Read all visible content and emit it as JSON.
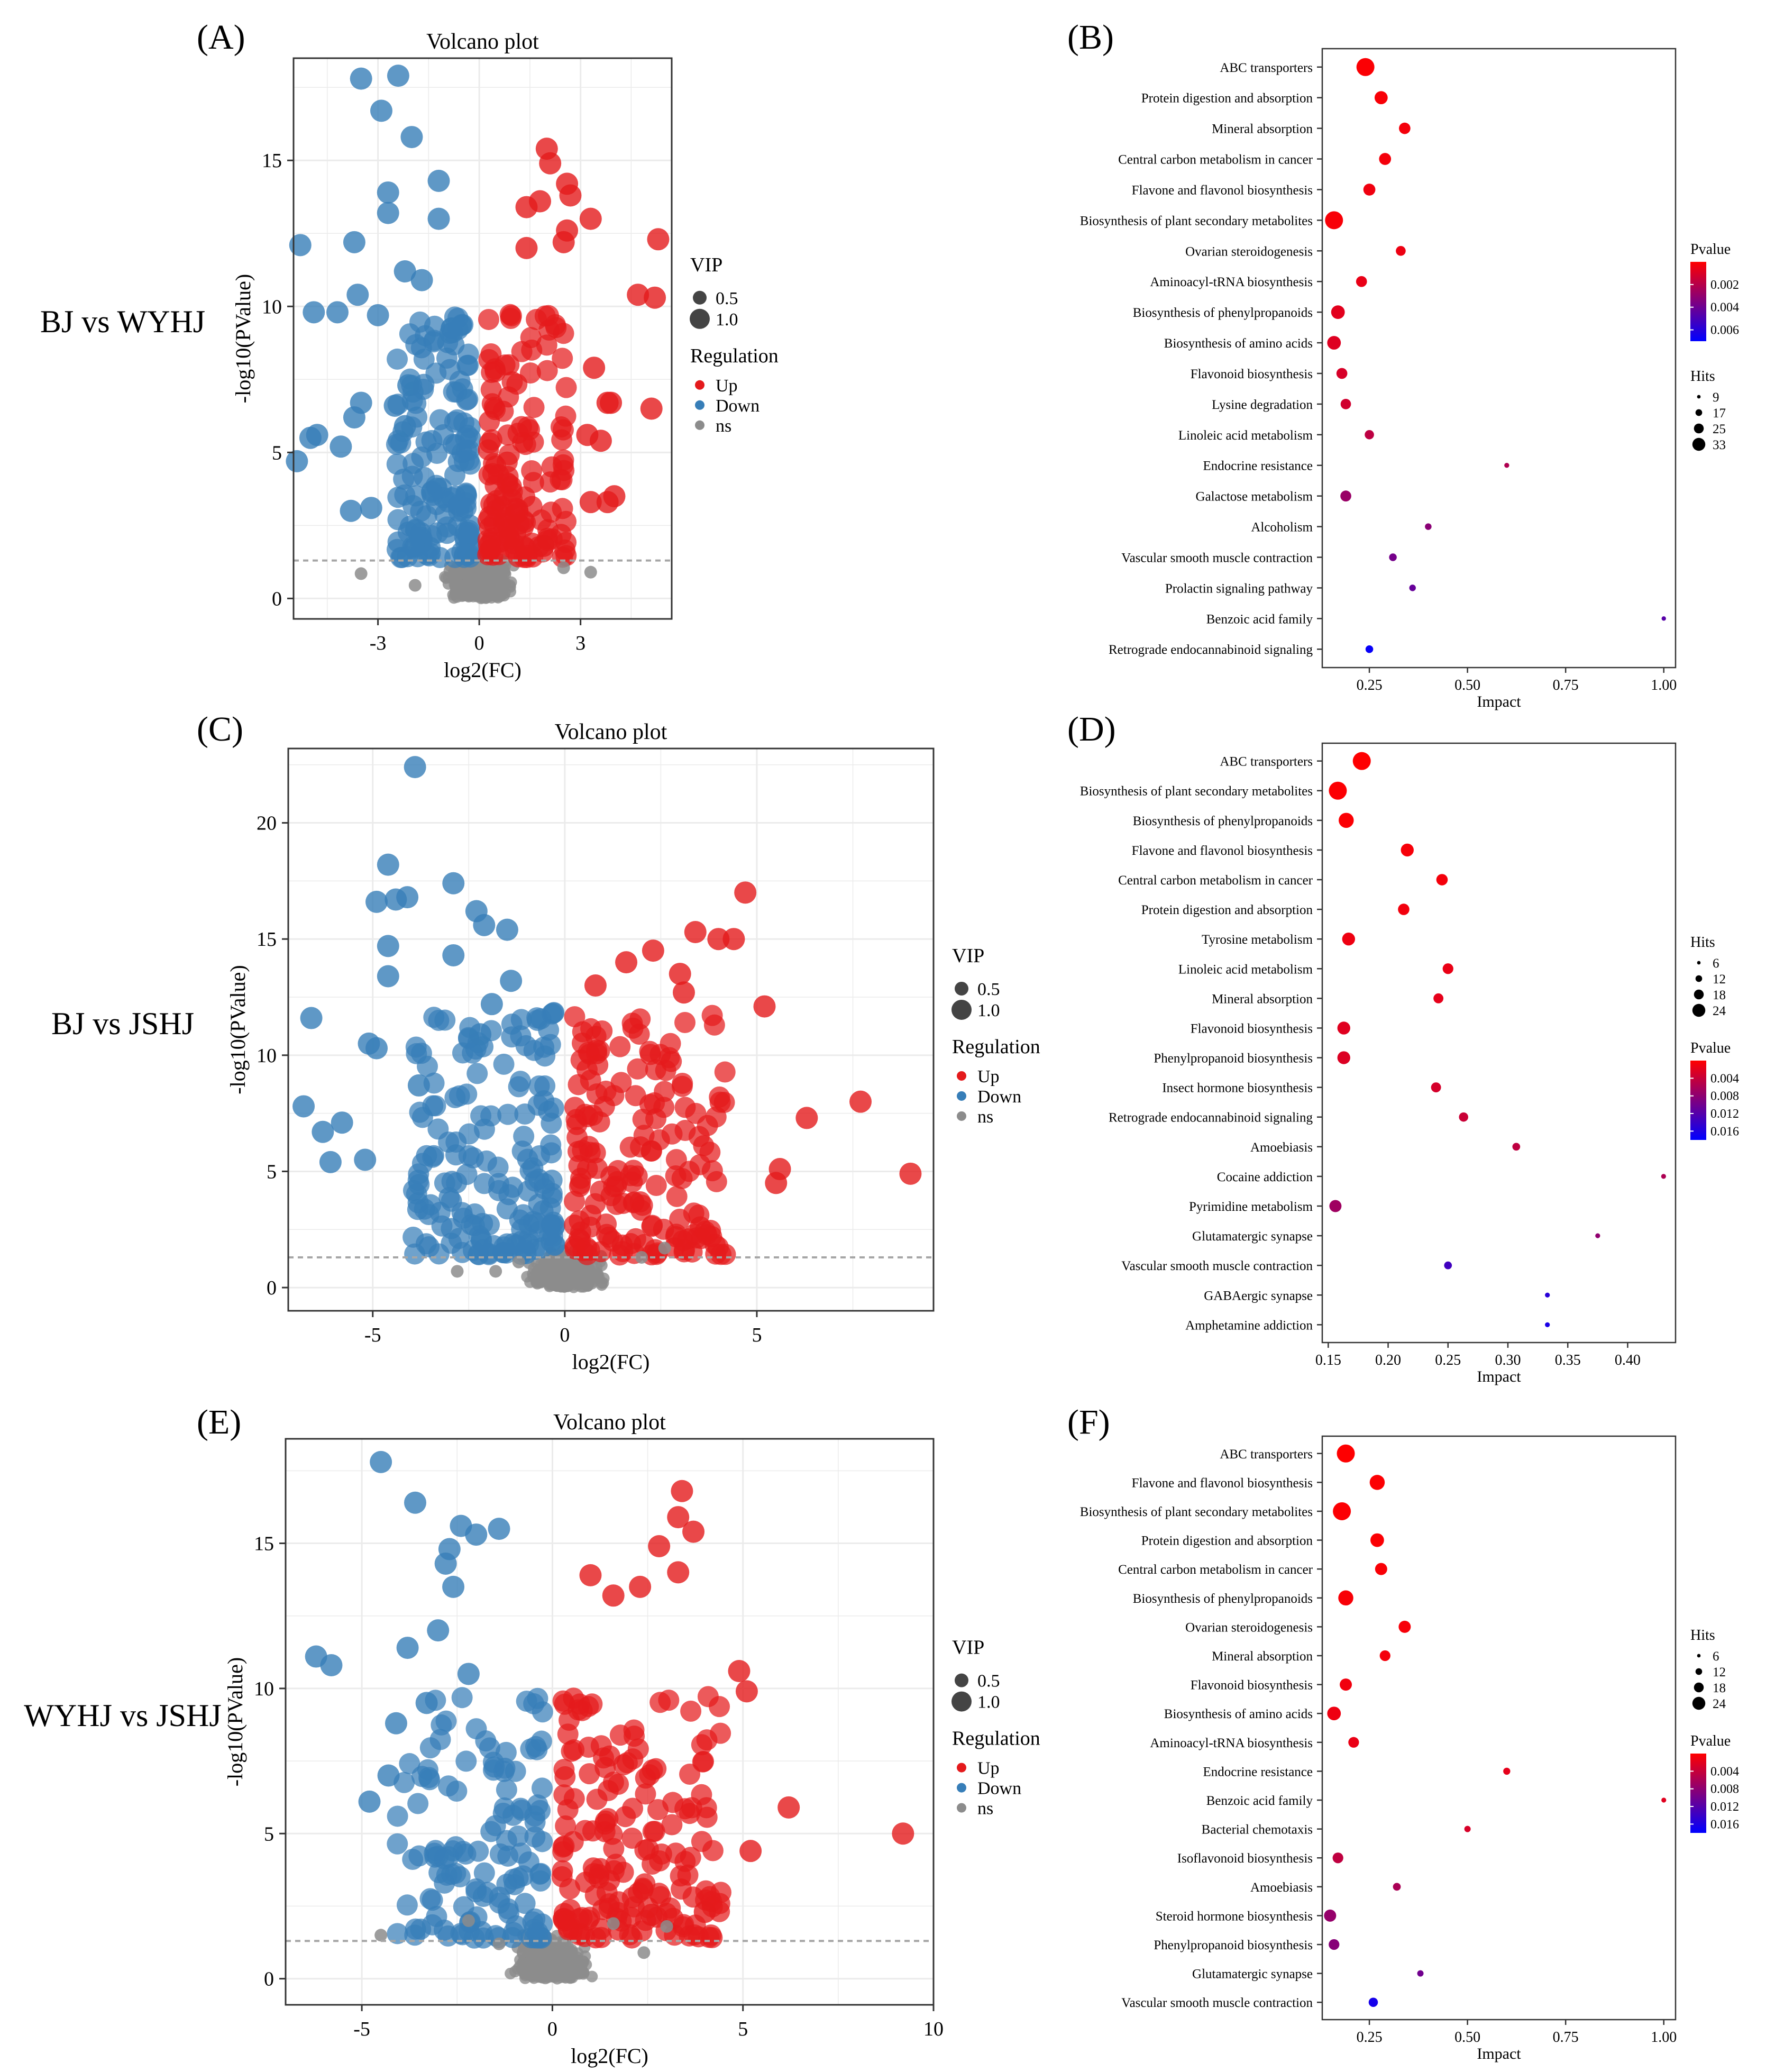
{
  "figure": {
    "rows": [
      {
        "comparison_label": "BJ vs WYHJ",
        "volcano_letter": "(A)",
        "pathway_letter": "(B)"
      },
      {
        "comparison_label": "BJ vs JSHJ",
        "volcano_letter": "(C)",
        "pathway_letter": "(D)"
      },
      {
        "comparison_label": "WYHJ vs JSHJ",
        "volcano_letter": "(E)",
        "pathway_letter": "(F)"
      }
    ],
    "colors": {
      "up": "#e41a1c",
      "down": "#377eb8",
      "ns": "#8c8c8c",
      "grid": "#ebebeb",
      "threshold": "#a6a6a6",
      "pvalue_low": "#ff0000",
      "pvalue_high": "#0000ff"
    }
  },
  "chart_data": [
    {
      "id": "A",
      "type": "scatter",
      "kind": "volcano",
      "title": "Volcano plot",
      "xlabel": "log2(FC)",
      "ylabel": "-log10(PValue)",
      "xlim": [
        -5.5,
        5.7
      ],
      "ylim": [
        -0.7,
        18.5
      ],
      "xticks": [
        -3,
        0,
        3
      ],
      "yticks": [
        0,
        5,
        10,
        15
      ],
      "threshold_y": 1.3,
      "grid": true,
      "seed": 11,
      "legend": {
        "vip_title": "VIP",
        "vip_labels": [
          "0.5",
          "1.0"
        ],
        "reg_title": "Regulation",
        "reg_labels": [
          "Up",
          "Down",
          "ns"
        ],
        "position": "right"
      },
      "points_down": [
        [
          -3.5,
          17.8
        ],
        [
          -2.4,
          17.9
        ],
        [
          -2.9,
          16.7
        ],
        [
          -2.0,
          15.8
        ],
        [
          -1.2,
          14.3
        ],
        [
          -2.7,
          13.9
        ],
        [
          -2.7,
          13.2
        ],
        [
          -1.2,
          13.0
        ],
        [
          -5.3,
          12.1
        ],
        [
          -3.7,
          12.2
        ],
        [
          -4.9,
          9.8
        ],
        [
          -4.2,
          9.8
        ],
        [
          -3.0,
          9.7
        ],
        [
          -3.6,
          10.4
        ],
        [
          -2.2,
          11.2
        ],
        [
          -5.0,
          5.5
        ],
        [
          -4.8,
          5.6
        ],
        [
          -4.1,
          5.2
        ],
        [
          -3.5,
          6.7
        ],
        [
          -5.4,
          4.7
        ],
        [
          -3.8,
          3.0
        ],
        [
          -3.2,
          3.1
        ],
        [
          -3.7,
          6.2
        ],
        [
          -2.1,
          7.3
        ],
        [
          -2.2,
          5.9
        ],
        [
          -1.7,
          10.9
        ],
        [
          -2.5,
          6.6
        ]
      ],
      "points_up": [
        [
          2.0,
          15.4
        ],
        [
          2.1,
          14.9
        ],
        [
          2.6,
          14.2
        ],
        [
          2.7,
          13.8
        ],
        [
          1.8,
          13.6
        ],
        [
          1.4,
          13.4
        ],
        [
          3.3,
          13.0
        ],
        [
          2.6,
          12.6
        ],
        [
          2.5,
          12.2
        ],
        [
          1.4,
          12.0
        ],
        [
          5.3,
          12.3
        ],
        [
          4.7,
          10.4
        ],
        [
          5.2,
          10.3
        ],
        [
          5.1,
          6.5
        ],
        [
          3.4,
          7.9
        ],
        [
          3.8,
          6.7
        ],
        [
          3.9,
          6.7
        ],
        [
          3.2,
          5.6
        ],
        [
          3.6,
          5.4
        ],
        [
          3.8,
          3.3
        ],
        [
          4.0,
          3.5
        ],
        [
          3.3,
          3.3
        ],
        [
          1.9,
          1.8
        ]
      ],
      "points_ns": [
        [
          -3.5,
          0.85
        ],
        [
          -1.9,
          0.45
        ],
        [
          3.3,
          0.9
        ],
        [
          2.5,
          1.05
        ]
      ],
      "n_down_cloud": 150,
      "n_up_cloud": 140,
      "n_ns": 420
    },
    {
      "id": "B",
      "type": "scatter",
      "kind": "pathway",
      "xlabel": "Impact",
      "xlim": [
        0.13,
        1.03
      ],
      "xticks": [
        0.25,
        0.5,
        0.75,
        1.0
      ],
      "xtick_labels": [
        "0.25",
        "0.50",
        "0.75",
        "1.00"
      ],
      "pathways": [
        "ABC transporters",
        "Protein digestion and absorption",
        "Mineral absorption",
        "Central carbon metabolism in cancer",
        "Flavone and flavonol biosynthesis",
        "Biosynthesis of plant secondary metabolites",
        "Ovarian steroidogenesis",
        "Aminoacyl-tRNA biosynthesis",
        "Biosynthesis of phenylpropanoids",
        "Biosynthesis of amino acids",
        "Flavonoid biosynthesis",
        "Lysine degradation",
        "Linoleic acid metabolism",
        "Endocrine resistance",
        "Galactose metabolism",
        "Alcoholism",
        "Vascular smooth muscle contraction",
        "Prolactin signaling pathway",
        "Benzoic acid family",
        "Retrograde endocannabinoid signaling"
      ],
      "impact": [
        0.24,
        0.28,
        0.34,
        0.29,
        0.25,
        0.16,
        0.33,
        0.23,
        0.17,
        0.16,
        0.18,
        0.19,
        0.25,
        0.6,
        0.19,
        0.4,
        0.31,
        0.36,
        1.0,
        0.25
      ],
      "hits": [
        33,
        24,
        21,
        22,
        22,
        33,
        18,
        20,
        25,
        25,
        20,
        19,
        17,
        9,
        20,
        12,
        14,
        12,
        8,
        14
      ],
      "pvalue": [
        0.0001,
        0.0002,
        0.0003,
        0.0003,
        0.0004,
        0.0002,
        0.0005,
        0.0006,
        0.0008,
        0.0009,
        0.0011,
        0.0013,
        0.0018,
        0.0022,
        0.0028,
        0.0032,
        0.0038,
        0.0042,
        0.0046,
        0.0068
      ],
      "hits_legend": {
        "title": "Hits",
        "values": [
          9,
          17,
          25,
          33
        ]
      },
      "pvalue_legend": {
        "title": "Pvalue",
        "range": [
          0,
          0.007
        ],
        "ticks": [
          0.002,
          0.004,
          0.006
        ],
        "tick_labels": [
          "0.002",
          "0.004",
          "0.006"
        ]
      }
    },
    {
      "id": "C",
      "type": "scatter",
      "kind": "volcano",
      "title": "Volcano plot",
      "xlabel": "log2(FC)",
      "ylabel": "-log10(PValue)",
      "xlim": [
        -7.2,
        9.6
      ],
      "ylim": [
        -1.0,
        23.2
      ],
      "xticks": [
        -5,
        0,
        5
      ],
      "yticks": [
        0,
        5,
        10,
        15,
        20
      ],
      "threshold_y": 1.3,
      "grid": true,
      "seed": 23,
      "legend": {
        "vip_title": "VIP",
        "vip_labels": [
          "0.5",
          "1.0"
        ],
        "reg_title": "Regulation",
        "reg_labels": [
          "Up",
          "Down",
          "ns"
        ],
        "position": "right"
      },
      "points_down": [
        [
          -3.9,
          22.4
        ],
        [
          -4.6,
          18.2
        ],
        [
          -4.1,
          16.8
        ],
        [
          -4.4,
          16.7
        ],
        [
          -4.9,
          16.6
        ],
        [
          -2.9,
          17.4
        ],
        [
          -2.3,
          16.2
        ],
        [
          -2.1,
          15.6
        ],
        [
          -1.5,
          15.4
        ],
        [
          -4.6,
          14.7
        ],
        [
          -6.6,
          11.6
        ],
        [
          -4.6,
          13.4
        ],
        [
          -2.9,
          14.3
        ],
        [
          -1.4,
          13.2
        ],
        [
          -5.1,
          10.5
        ],
        [
          -4.9,
          10.3
        ],
        [
          -6.8,
          7.8
        ],
        [
          -5.8,
          7.1
        ],
        [
          -6.3,
          6.7
        ],
        [
          -6.1,
          5.4
        ],
        [
          -5.2,
          5.5
        ],
        [
          -3.8,
          8.7
        ],
        [
          -2.2,
          10.9
        ],
        [
          -1.9,
          12.2
        ]
      ],
      "points_up": [
        [
          4.7,
          17.0
        ],
        [
          4.4,
          15.0
        ],
        [
          2.3,
          14.5
        ],
        [
          3.4,
          15.3
        ],
        [
          4.0,
          15.0
        ],
        [
          3.0,
          13.5
        ],
        [
          5.2,
          12.1
        ],
        [
          7.7,
          8.0
        ],
        [
          6.3,
          7.3
        ],
        [
          9.0,
          4.9
        ],
        [
          5.6,
          5.1
        ],
        [
          5.5,
          4.5
        ],
        [
          0.8,
          13.0
        ],
        [
          3.1,
          12.7
        ],
        [
          1.6,
          14.0
        ]
      ],
      "points_ns": [
        [
          -2.8,
          0.7
        ],
        [
          -1.8,
          0.7
        ],
        [
          2.0,
          1.3
        ],
        [
          2.6,
          1.7
        ],
        [
          -1.2,
          1.1
        ]
      ],
      "n_down_cloud": 170,
      "n_up_cloud": 170,
      "n_ns": 440
    },
    {
      "id": "D",
      "type": "scatter",
      "kind": "pathway",
      "xlabel": "Impact",
      "xlim": [
        0.145,
        0.44
      ],
      "xticks": [
        0.15,
        0.2,
        0.25,
        0.3,
        0.35,
        0.4
      ],
      "xtick_labels": [
        "0.15",
        "0.20",
        "0.25",
        "0.30",
        "0.35",
        "0.40"
      ],
      "pathways": [
        "ABC transporters",
        "Biosynthesis of plant secondary metabolites",
        "Biosynthesis of phenylpropanoids",
        "Flavone and flavonol biosynthesis",
        "Central carbon metabolism in cancer",
        "Protein digestion and absorption",
        "Tyrosine metabolism",
        "Linoleic acid metabolism",
        "Mineral absorption",
        "Flavonoid biosynthesis",
        "Phenylpropanoid biosynthesis",
        "Insect hormone biosynthesis",
        "Retrograde endocannabinoid signaling",
        "Amoebiasis",
        "Cocaine addiction",
        "Pyrimidine metabolism",
        "Glutamatergic synapse",
        "Vascular smooth muscle contraction",
        "GABAergic synapse",
        "Amphetamine addiction"
      ],
      "impact": [
        0.178,
        0.158,
        0.165,
        0.216,
        0.245,
        0.213,
        0.167,
        0.25,
        0.242,
        0.163,
        0.163,
        0.24,
        0.263,
        0.307,
        0.43,
        0.156,
        0.375,
        0.25,
        0.333,
        0.333
      ],
      "hits": [
        25,
        24,
        20,
        17,
        15,
        15,
        17,
        14,
        13,
        17,
        17,
        13,
        12,
        10,
        6,
        16,
        6,
        10,
        6,
        6
      ],
      "pvalue": [
        0.0001,
        0.0002,
        0.0003,
        0.0006,
        0.0008,
        0.0009,
        0.0012,
        0.0015,
        0.0018,
        0.0022,
        0.0025,
        0.003,
        0.0038,
        0.0046,
        0.0058,
        0.0068,
        0.0078,
        0.0135,
        0.0152,
        0.0162
      ],
      "hits_legend": {
        "title": "Hits",
        "values": [
          6,
          12,
          18,
          24
        ]
      },
      "pvalue_legend": {
        "title": "Pvalue",
        "range": [
          0,
          0.018
        ],
        "ticks": [
          0.004,
          0.008,
          0.012,
          0.016
        ],
        "tick_labels": [
          "0.004",
          "0.008",
          "0.012",
          "0.016"
        ]
      }
    },
    {
      "id": "E",
      "type": "scatter",
      "kind": "volcano",
      "title": "Volcano plot",
      "xlabel": "log2(FC)",
      "ylabel": "-log10(PValue)",
      "xlim": [
        -7.0,
        10.0
      ],
      "ylim": [
        -0.9,
        18.6
      ],
      "xticks": [
        -5,
        0,
        5,
        10
      ],
      "yticks": [
        0,
        5,
        10,
        15
      ],
      "threshold_y": 1.3,
      "grid": true,
      "seed": 37,
      "legend": {
        "vip_title": "VIP",
        "vip_labels": [
          "0.5",
          "1.0"
        ],
        "reg_title": "Regulation",
        "reg_labels": [
          "Up",
          "Down",
          "ns"
        ],
        "position": "right"
      },
      "points_down": [
        [
          -4.5,
          17.8
        ],
        [
          -3.6,
          16.4
        ],
        [
          -2.4,
          15.6
        ],
        [
          -2.7,
          14.8
        ],
        [
          -2.0,
          15.3
        ],
        [
          -2.8,
          14.3
        ],
        [
          -6.2,
          11.1
        ],
        [
          -5.8,
          10.8
        ],
        [
          -4.8,
          6.1
        ],
        [
          -3.8,
          11.4
        ],
        [
          -4.1,
          8.8
        ],
        [
          -3.0,
          12.0
        ],
        [
          -2.2,
          10.5
        ],
        [
          -4.3,
          7.0
        ],
        [
          -3.3,
          9.5
        ],
        [
          -1.4,
          15.5
        ],
        [
          -2.6,
          13.5
        ]
      ],
      "points_up": [
        [
          3.4,
          16.8
        ],
        [
          3.3,
          15.9
        ],
        [
          3.7,
          15.4
        ],
        [
          2.8,
          14.9
        ],
        [
          3.3,
          14.0
        ],
        [
          1.0,
          13.9
        ],
        [
          4.9,
          10.6
        ],
        [
          5.1,
          9.9
        ],
        [
          6.2,
          5.9
        ],
        [
          9.2,
          5.0
        ],
        [
          5.2,
          4.4
        ],
        [
          4.0,
          2.3
        ],
        [
          2.6,
          2.2
        ],
        [
          2.3,
          13.5
        ],
        [
          1.6,
          13.2
        ]
      ],
      "points_ns": [
        [
          -4.5,
          1.5
        ],
        [
          -2.2,
          2.0
        ],
        [
          -1.4,
          1.2
        ],
        [
          1.6,
          1.9
        ],
        [
          3.0,
          1.8
        ],
        [
          2.4,
          0.9
        ]
      ],
      "n_down_cloud": 130,
      "n_up_cloud": 170,
      "n_ns": 420
    },
    {
      "id": "F",
      "type": "scatter",
      "kind": "pathway",
      "xlabel": "Impact",
      "xlim": [
        0.13,
        1.03
      ],
      "xticks": [
        0.25,
        0.5,
        0.75,
        1.0
      ],
      "xtick_labels": [
        "0.25",
        "0.50",
        "0.75",
        "1.00"
      ],
      "pathways": [
        "ABC transporters",
        "Flavone and flavonol biosynthesis",
        "Biosynthesis of plant secondary metabolites",
        "Protein digestion and absorption",
        "Central carbon metabolism in cancer",
        "Biosynthesis of phenylpropanoids",
        "Ovarian steroidogenesis",
        "Mineral absorption",
        "Flavonoid biosynthesis",
        "Biosynthesis of amino acids",
        "Aminoacyl-tRNA biosynthesis",
        "Endocrine resistance",
        "Benzoic acid family",
        "Bacterial chemotaxis",
        "Isoflavonoid biosynthesis",
        "Amoebiasis",
        "Steroid hormone biosynthesis",
        "Phenylpropanoid biosynthesis",
        "Glutamatergic synapse",
        "Vascular smooth muscle contraction"
      ],
      "impact": [
        0.19,
        0.27,
        0.18,
        0.27,
        0.28,
        0.19,
        0.34,
        0.29,
        0.19,
        0.16,
        0.21,
        0.6,
        1.0,
        0.5,
        0.17,
        0.32,
        0.15,
        0.16,
        0.38,
        0.26
      ],
      "hits": [
        24,
        20,
        24,
        18,
        16,
        20,
        16,
        14,
        16,
        18,
        14,
        9,
        6,
        8,
        14,
        10,
        16,
        14,
        8,
        12
      ],
      "pvalue": [
        0.0001,
        0.0002,
        0.0002,
        0.0003,
        0.0004,
        0.0005,
        0.0006,
        0.0008,
        0.001,
        0.0012,
        0.0015,
        0.0018,
        0.0022,
        0.0028,
        0.0045,
        0.006,
        0.0075,
        0.0085,
        0.01,
        0.0165
      ],
      "hits_legend": {
        "title": "Hits",
        "values": [
          6,
          12,
          18,
          24
        ]
      },
      "pvalue_legend": {
        "title": "Pvalue",
        "range": [
          0,
          0.018
        ],
        "ticks": [
          0.004,
          0.008,
          0.012,
          0.016
        ],
        "tick_labels": [
          "0.004",
          "0.008",
          "0.012",
          "0.016"
        ]
      }
    }
  ]
}
